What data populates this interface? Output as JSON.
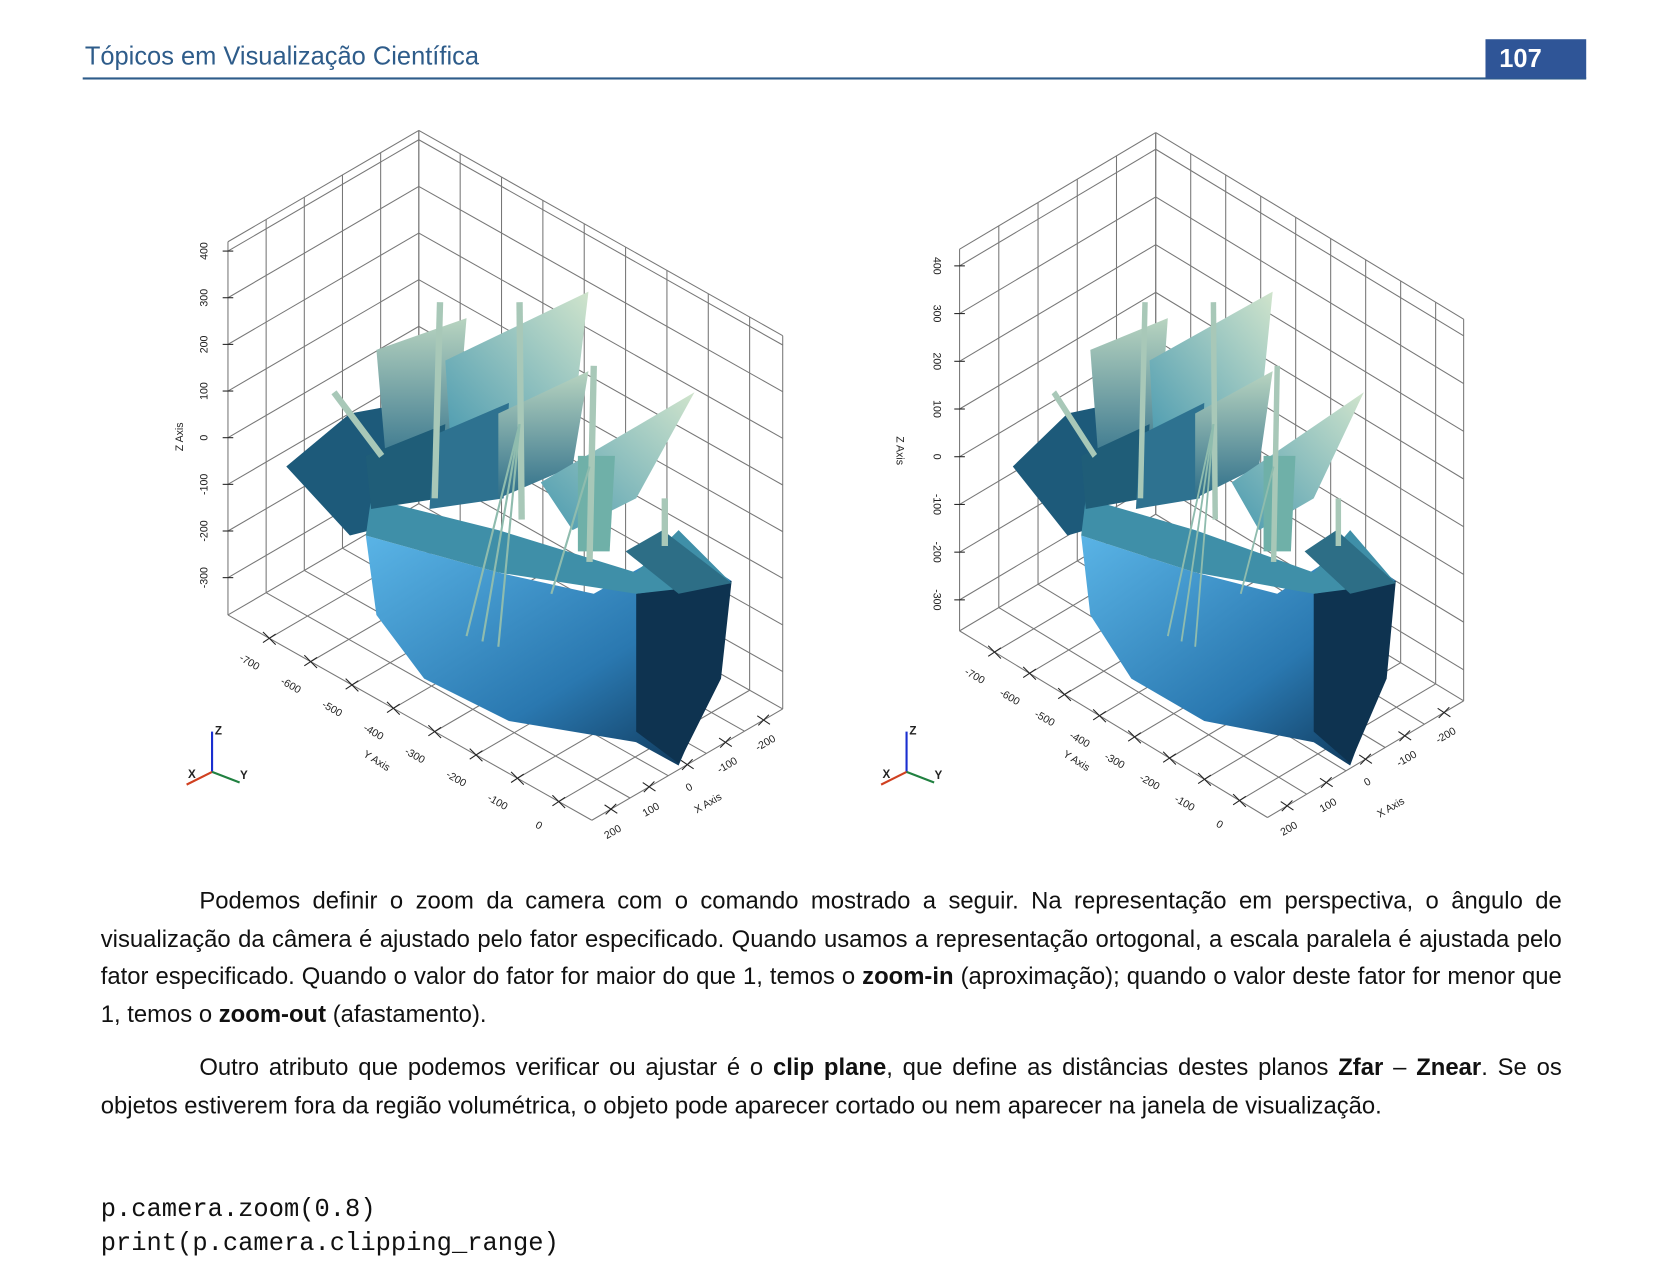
{
  "header": {
    "title": "Tópicos em Visualização Científica",
    "page_number": "107"
  },
  "figures": [
    {
      "z_axis_title": "Z Axis",
      "y_axis_title": "Y Axis",
      "x_axis_title": "X Axis",
      "z_ticks": [
        -300,
        -200,
        -100,
        0,
        100,
        200,
        300,
        400
      ],
      "y_ticks": [
        -700,
        -600,
        -500,
        -400,
        -300,
        -200,
        -100,
        0
      ],
      "x_ticks": [
        200,
        100,
        0,
        -100,
        -200
      ],
      "triad": {
        "x": "X",
        "y": "Y",
        "z": "Z"
      }
    },
    {
      "z_axis_title": "Z Axis",
      "y_axis_title": "Y Axis",
      "x_axis_title": "X Axis",
      "z_ticks": [
        -300,
        -200,
        -100,
        0,
        100,
        200,
        300,
        400
      ],
      "y_ticks": [
        -700,
        -600,
        -500,
        -400,
        -300,
        -200,
        -100,
        0
      ],
      "x_ticks": [
        200,
        100,
        0,
        -100,
        -200
      ],
      "triad": {
        "x": "X",
        "y": "Y",
        "z": "Z"
      }
    }
  ],
  "paragraphs": [
    [
      {
        "text": "Podemos definir o zoom da camera com o comando mostrado a seguir. Na representação em perspectiva, o ângulo de visualização da câmera é ajustado pelo fator especificado. Quando usamos a representação ortogonal, a escala paralela é ajustada pelo fator especificado. Quando o valor do fator for maior do que 1, temos o "
      },
      {
        "text": "zoom-in",
        "bold": true
      },
      {
        "text": " (aproximação); quando o valor deste fator for menor que 1, temos o "
      },
      {
        "text": "zoom-out",
        "bold": true
      },
      {
        "text": " (afastamento)."
      }
    ],
    [
      {
        "text": "Outro atributo que podemos verificar ou ajustar é o "
      },
      {
        "text": "clip plane",
        "bold": true
      },
      {
        "text": ", que define as distâncias destes planos "
      },
      {
        "text": "Zfar",
        "bold": true
      },
      {
        "text": " – "
      },
      {
        "text": "Znear",
        "bold": true
      },
      {
        "text": ". Se os objetos estiverem fora da região volumétrica, o objeto pode aparecer cortado ou nem aparecer na janela de visualização."
      }
    ]
  ],
  "code": [
    "p.camera.zoom(0.8)",
    "print(p.camera.clipping_range)"
  ]
}
